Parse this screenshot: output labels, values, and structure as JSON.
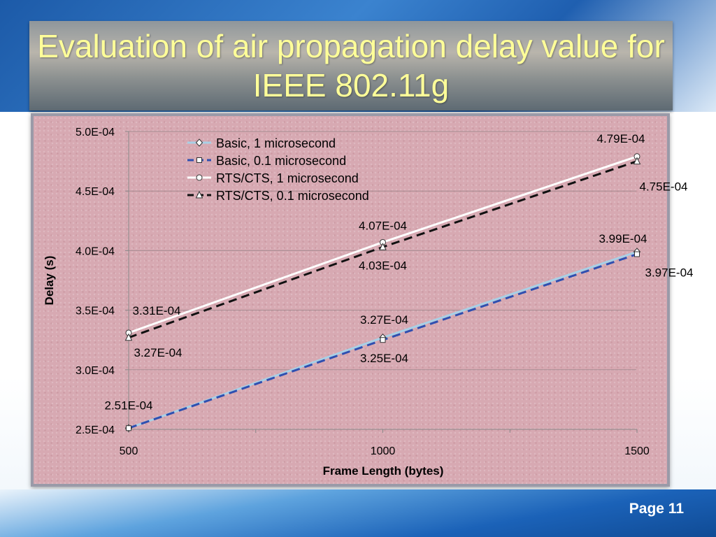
{
  "slide": {
    "title": "Evaluation of air propagation delay value for IEEE 802.11g",
    "page": "Page 11"
  },
  "chart_data": {
    "type": "line",
    "title": "",
    "xlabel": "Frame Length (bytes)",
    "ylabel": "Delay (s)",
    "x": [
      500,
      1000,
      1500
    ],
    "xlim": [
      500,
      1500
    ],
    "ylim": [
      0.00025,
      0.0005
    ],
    "x_tick_labels": [
      "500",
      "1000",
      "1500"
    ],
    "y_tick_labels": [
      "2.5E-04",
      "3.0E-04",
      "3.5E-04",
      "4.0E-04",
      "4.5E-04",
      "5.0E-04"
    ],
    "grid": "horizontal",
    "legend_position": "top-left",
    "series": [
      {
        "name": "Basic, 1 microsecond",
        "values": [
          0.000251,
          0.000327,
          0.000399
        ],
        "labels": [
          "2.51E-04",
          "3.27E-04",
          "3.99E-04"
        ],
        "color": "#a8d0e6",
        "dash": "solid",
        "marker": "diamond"
      },
      {
        "name": "Basic, 0.1 microsecond",
        "values": [
          0.000251,
          0.000325,
          0.000397
        ],
        "labels": [
          "",
          "3.25E-04",
          "3.97E-04"
        ],
        "color": "#2f4fb0",
        "dash": "dashed",
        "marker": "square"
      },
      {
        "name": "RTS/CTS, 1 microsecond",
        "values": [
          0.000331,
          0.000407,
          0.000479
        ],
        "labels": [
          "3.31E-04",
          "4.07E-04",
          "4.79E-04"
        ],
        "color": "#ffffff",
        "dash": "solid",
        "marker": "circle"
      },
      {
        "name": "RTS/CTS, 0.1 microsecond",
        "values": [
          0.000327,
          0.000403,
          0.000475
        ],
        "labels": [
          "3.27E-04",
          "4.03E-04",
          "4.75E-04"
        ],
        "color": "#111111",
        "dash": "dashed",
        "marker": "triangle"
      }
    ]
  }
}
